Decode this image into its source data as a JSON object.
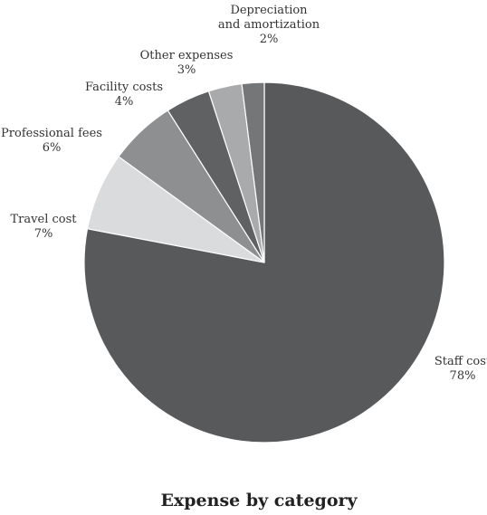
{
  "chart_data": {
    "type": "pie",
    "title": "Expense by category",
    "start_angle_deg": 0,
    "direction": "clockwise",
    "slices": [
      {
        "label": "Staff cost",
        "value": 78,
        "display": "78%",
        "color": "#58595b"
      },
      {
        "label": "Travel cost",
        "value": 7,
        "display": "7%",
        "color": "#dadbdc"
      },
      {
        "label": "Professional fees",
        "value": 6,
        "display": "6%",
        "color": "#8e8f91"
      },
      {
        "label": "Facility costs",
        "value": 4,
        "display": "4%",
        "color": "#606163"
      },
      {
        "label": "Other expenses",
        "value": 3,
        "display": "3%",
        "color": "#a9aaac"
      },
      {
        "label": "Depreciation and amortization",
        "label_lines": [
          "Depreciation",
          "and amortization"
        ],
        "value": 2,
        "display": "2%",
        "color": "#757678"
      }
    ]
  }
}
